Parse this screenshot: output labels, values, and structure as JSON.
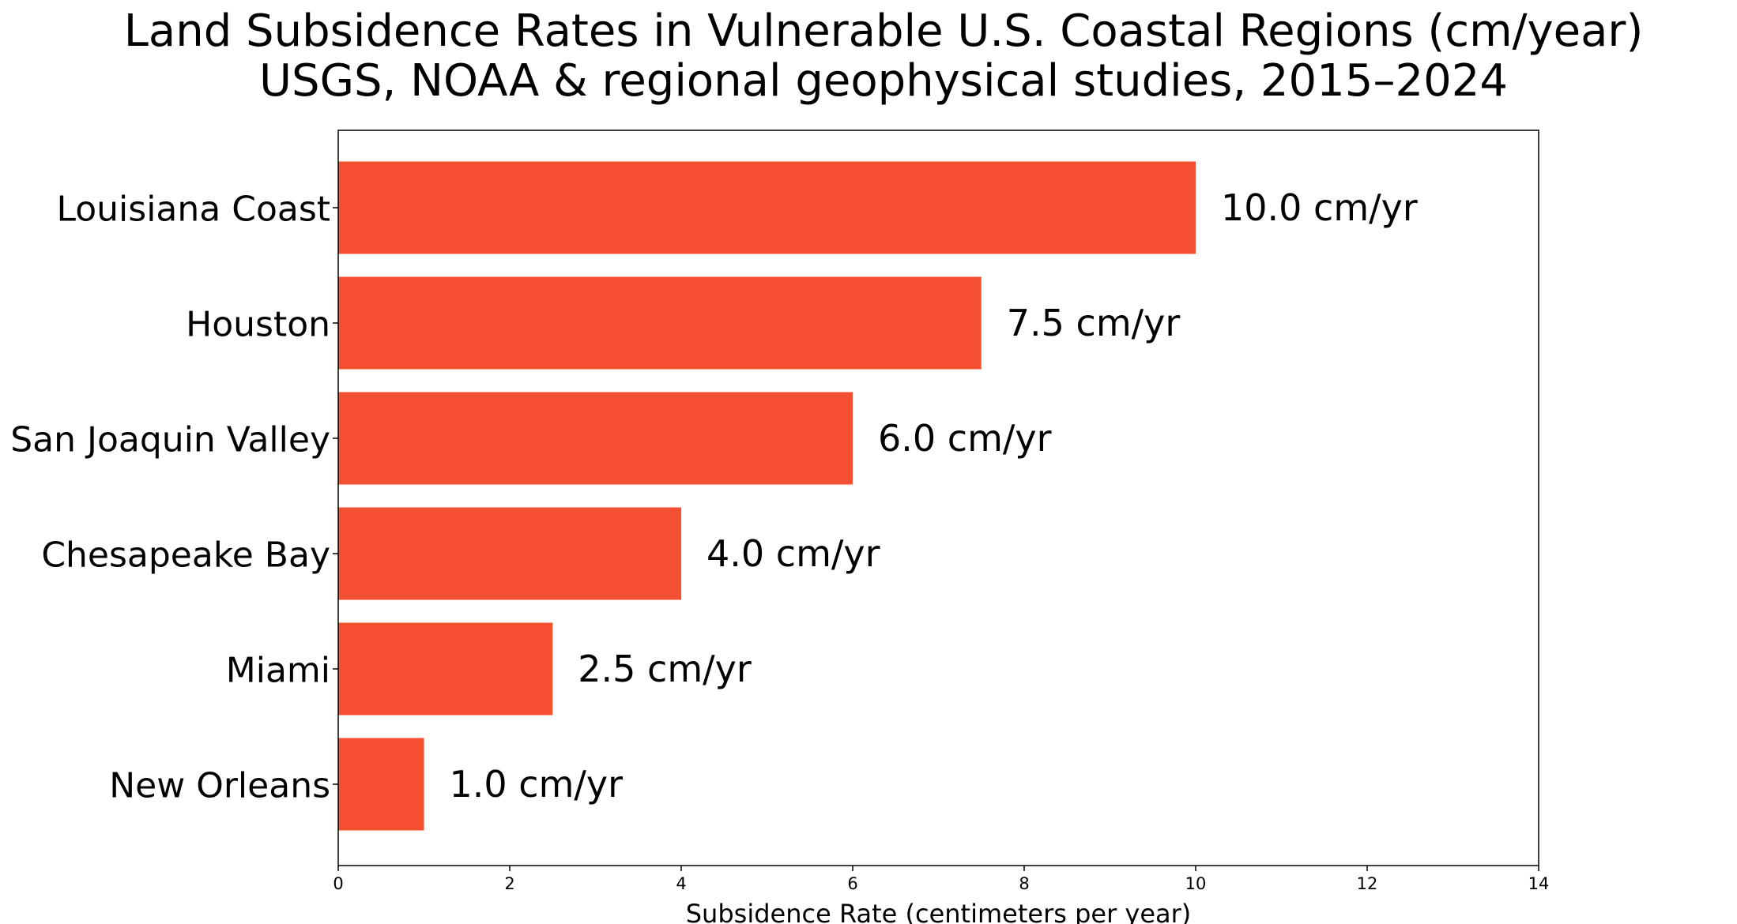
{
  "chart_data": {
    "type": "bar",
    "orientation": "horizontal",
    "title": "Land Subsidence Rates in Vulnerable U.S. Coastal Regions (cm/year)",
    "subtitle": "USGS, NOAA & regional geophysical studies, 2015–2024",
    "xlabel": "Subsidence Rate (centimeters per year)",
    "ylabel": "",
    "xlim": [
      0,
      14
    ],
    "xticks": [
      0,
      2,
      4,
      6,
      8,
      10,
      12,
      14
    ],
    "categories": [
      "Louisiana Coast",
      "Houston",
      "San Joaquin Valley",
      "Chesapeake Bay",
      "Miami",
      "New Orleans"
    ],
    "values": [
      10.0,
      7.5,
      6.0,
      4.0,
      2.5,
      1.0
    ],
    "value_labels": [
      "10.0 cm/yr",
      "7.5 cm/yr",
      "6.0 cm/yr",
      "4.0 cm/yr",
      "2.5 cm/yr",
      "1.0 cm/yr"
    ],
    "bar_color": "#f44f30",
    "grid": false,
    "legend": "none"
  }
}
